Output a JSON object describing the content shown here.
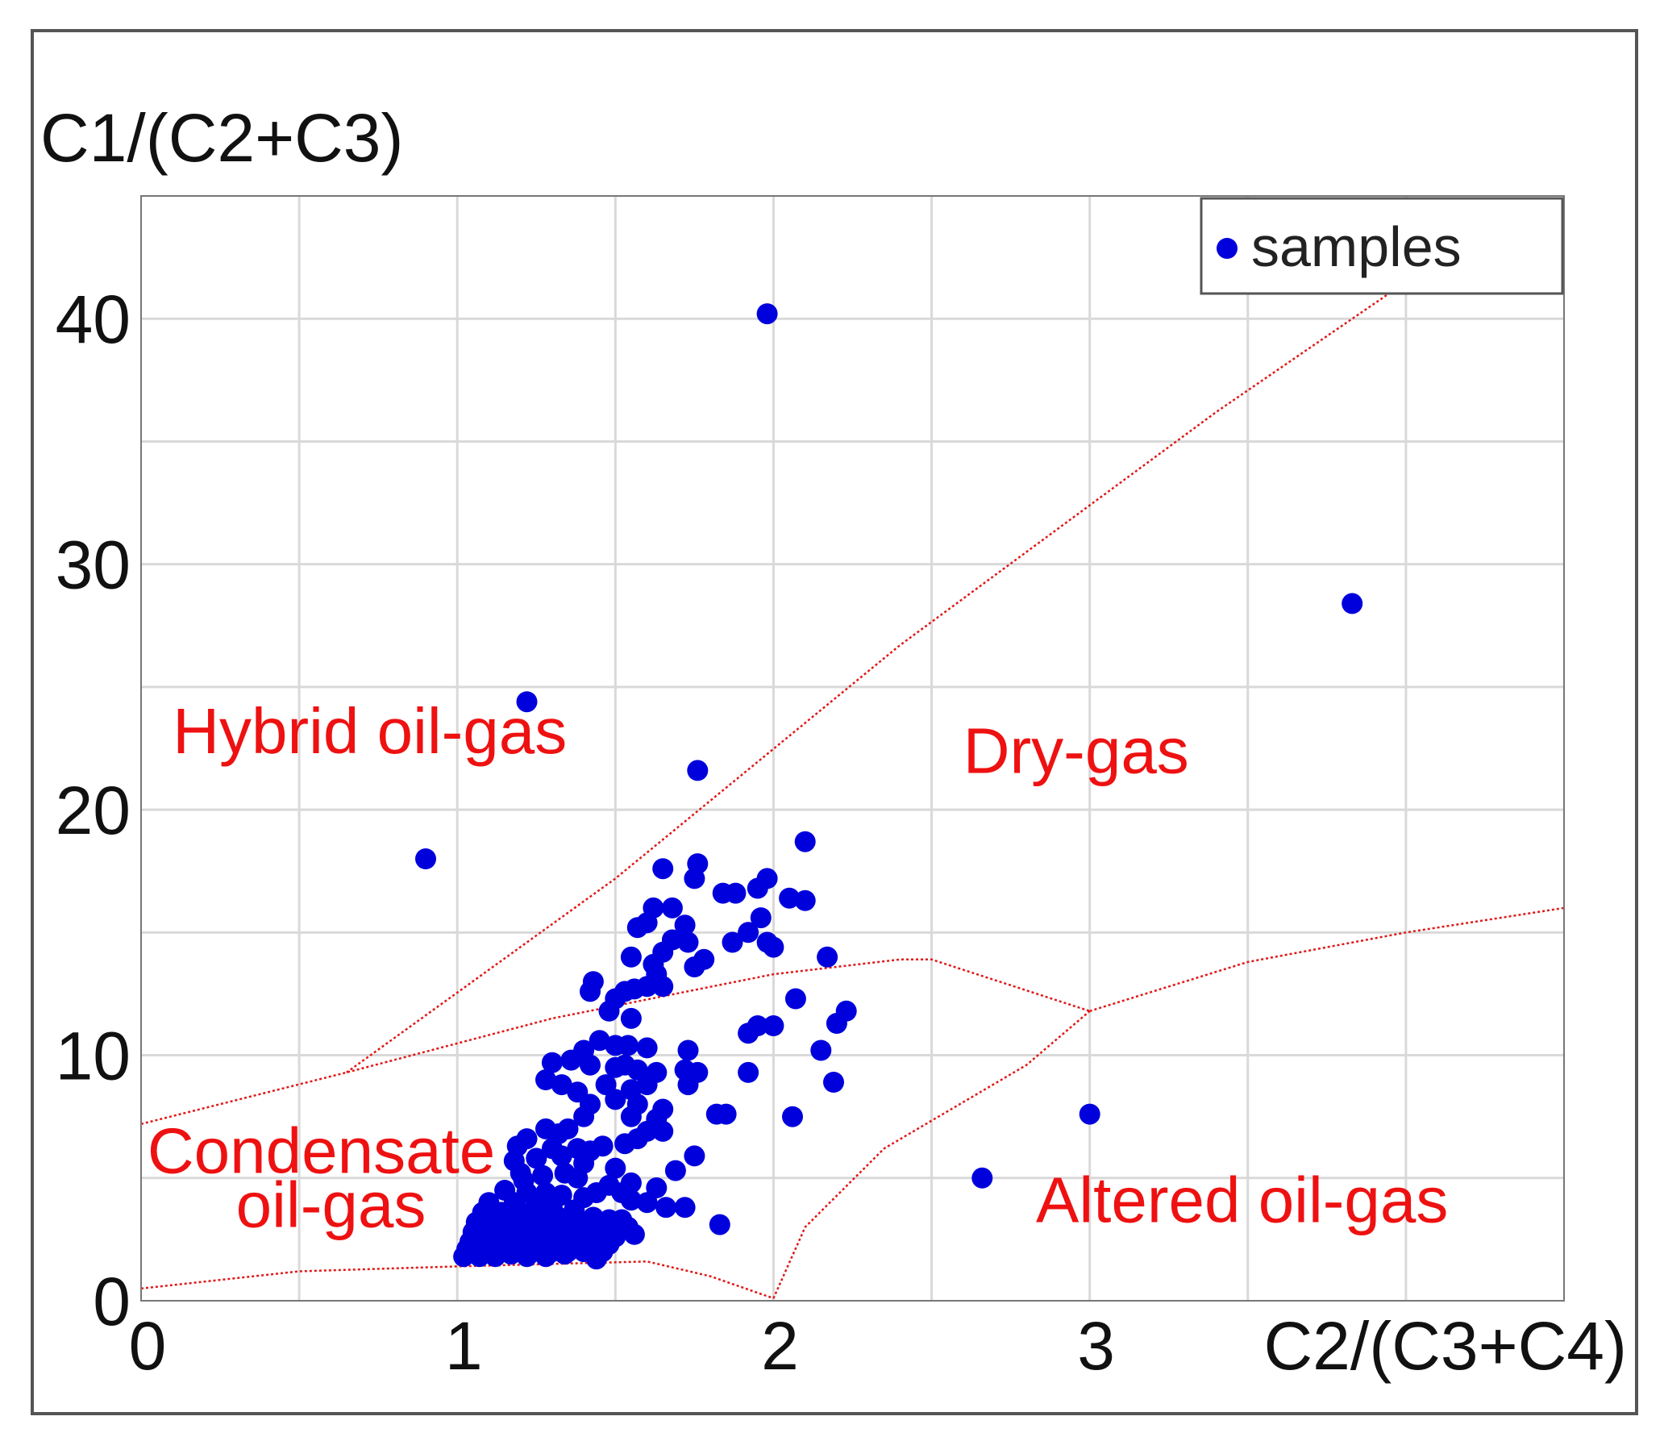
{
  "chart_data": {
    "type": "scatter",
    "ylabel": "C1/(C2+C3)",
    "xlabel": "C2/(C3+C4)",
    "xlim": [
      0,
      4.5
    ],
    "ylim": [
      0,
      45
    ],
    "x_grid_step": 0.5,
    "y_grid_step": 5,
    "x_ticks": [
      {
        "value": 0,
        "label": "0"
      },
      {
        "value": 1,
        "label": "1"
      },
      {
        "value": 2,
        "label": "2"
      },
      {
        "value": 3,
        "label": "3"
      }
    ],
    "y_ticks": [
      {
        "value": 0,
        "label": "0"
      },
      {
        "value": 10,
        "label": "10"
      },
      {
        "value": 20,
        "label": "20"
      },
      {
        "value": 30,
        "label": "30"
      },
      {
        "value": 40,
        "label": "40"
      }
    ],
    "grid": true,
    "legend": {
      "position": "top-right",
      "entries": [
        {
          "label": "samples",
          "color": "#0000dd"
        }
      ]
    },
    "colors": {
      "points": "#0000dd",
      "boundaries": "#e01818",
      "region_labels": "#ee1111",
      "grid": "#d9d9d9"
    },
    "region_labels": [
      {
        "text": "Hybrid oil-gas",
        "x": 0.1,
        "y": 22.3
      },
      {
        "text": "Dry-gas",
        "x": 2.6,
        "y": 21.5
      },
      {
        "text": "Condensate",
        "x": 0.02,
        "y": 5.2
      },
      {
        "text": "oil-gas",
        "x": 0.3,
        "y": 3.0
      },
      {
        "text": "Altered oil-gas",
        "x": 2.83,
        "y": 3.2
      }
    ],
    "boundaries": [
      {
        "name": "hybrid-drygas-boundary",
        "points": [
          [
            0.65,
            9.3
          ],
          [
            1.5,
            17.2
          ],
          [
            2.4,
            26.7
          ],
          [
            3.4,
            36.2
          ],
          [
            4.0,
            41.5
          ]
        ]
      },
      {
        "name": "condensate-upper-boundary",
        "points": [
          [
            0,
            7.2
          ],
          [
            0.65,
            9.3
          ],
          [
            1.3,
            11.5
          ],
          [
            2.0,
            13.3
          ],
          [
            2.4,
            13.9
          ],
          [
            2.5,
            13.9
          ],
          [
            3.0,
            11.8
          ]
        ]
      },
      {
        "name": "altered-upper-boundary",
        "points": [
          [
            3.0,
            11.8
          ],
          [
            3.5,
            13.8
          ],
          [
            4.0,
            15.0
          ],
          [
            4.5,
            16.0
          ]
        ]
      },
      {
        "name": "altered-left-boundary",
        "points": [
          [
            2.0,
            0.1
          ],
          [
            2.1,
            3.0
          ],
          [
            2.35,
            6.2
          ],
          [
            2.8,
            9.6
          ],
          [
            3.0,
            11.8
          ]
        ]
      },
      {
        "name": "bottom-boundary",
        "points": [
          [
            0,
            0.5
          ],
          [
            0.5,
            1.2
          ],
          [
            1.0,
            1.4
          ],
          [
            1.6,
            1.6
          ],
          [
            1.8,
            1.0
          ],
          [
            2.0,
            0.1
          ]
        ]
      }
    ],
    "series": [
      {
        "name": "samples",
        "points": [
          [
            1.98,
            40.2
          ],
          [
            3.83,
            28.4
          ],
          [
            1.22,
            24.4
          ],
          [
            1.76,
            21.6
          ],
          [
            0.9,
            18.0
          ],
          [
            2.1,
            18.7
          ],
          [
            1.76,
            17.8
          ],
          [
            1.65,
            17.6
          ],
          [
            1.75,
            17.2
          ],
          [
            1.84,
            16.6
          ],
          [
            1.88,
            16.6
          ],
          [
            1.98,
            17.2
          ],
          [
            1.95,
            16.8
          ],
          [
            2.05,
            16.4
          ],
          [
            2.1,
            16.3
          ],
          [
            1.62,
            16.0
          ],
          [
            1.68,
            16.0
          ],
          [
            1.6,
            15.4
          ],
          [
            1.57,
            15.2
          ],
          [
            1.72,
            15.3
          ],
          [
            1.96,
            15.6
          ],
          [
            1.92,
            15.0
          ],
          [
            1.87,
            14.6
          ],
          [
            1.68,
            14.7
          ],
          [
            1.73,
            14.6
          ],
          [
            1.98,
            14.6
          ],
          [
            2.0,
            14.4
          ],
          [
            1.65,
            14.2
          ],
          [
            1.78,
            13.9
          ],
          [
            1.75,
            13.6
          ],
          [
            1.55,
            14.0
          ],
          [
            1.62,
            13.7
          ],
          [
            2.17,
            14.0
          ],
          [
            1.63,
            13.3
          ],
          [
            1.43,
            13.0
          ],
          [
            1.42,
            12.6
          ],
          [
            1.53,
            12.6
          ],
          [
            1.5,
            12.3
          ],
          [
            1.56,
            12.7
          ],
          [
            1.6,
            12.8
          ],
          [
            1.65,
            12.8
          ],
          [
            2.07,
            12.3
          ],
          [
            2.23,
            11.8
          ],
          [
            2.2,
            11.3
          ],
          [
            1.95,
            11.2
          ],
          [
            1.92,
            10.9
          ],
          [
            2.0,
            11.2
          ],
          [
            1.48,
            11.8
          ],
          [
            1.55,
            11.5
          ],
          [
            1.45,
            10.6
          ],
          [
            1.4,
            10.2
          ],
          [
            1.5,
            10.4
          ],
          [
            1.54,
            10.4
          ],
          [
            1.6,
            10.3
          ],
          [
            1.73,
            10.2
          ],
          [
            2.15,
            10.2
          ],
          [
            1.3,
            9.7
          ],
          [
            1.36,
            9.8
          ],
          [
            1.42,
            9.6
          ],
          [
            1.5,
            9.5
          ],
          [
            1.53,
            9.6
          ],
          [
            1.57,
            9.4
          ],
          [
            1.63,
            9.3
          ],
          [
            1.72,
            9.4
          ],
          [
            1.76,
            9.3
          ],
          [
            1.92,
            9.3
          ],
          [
            1.28,
            9.0
          ],
          [
            1.33,
            8.8
          ],
          [
            1.38,
            8.5
          ],
          [
            1.47,
            8.8
          ],
          [
            1.55,
            8.6
          ],
          [
            1.6,
            8.8
          ],
          [
            1.73,
            8.8
          ],
          [
            2.19,
            8.9
          ],
          [
            1.42,
            8.0
          ],
          [
            1.5,
            8.2
          ],
          [
            1.57,
            8.0
          ],
          [
            1.65,
            7.8
          ],
          [
            1.82,
            7.6
          ],
          [
            1.85,
            7.6
          ],
          [
            1.4,
            7.5
          ],
          [
            1.55,
            7.5
          ],
          [
            1.63,
            7.4
          ],
          [
            1.35,
            7.0
          ],
          [
            1.28,
            7.0
          ],
          [
            1.32,
            6.8
          ],
          [
            1.22,
            6.6
          ],
          [
            1.57,
            6.6
          ],
          [
            1.6,
            6.9
          ],
          [
            1.65,
            6.9
          ],
          [
            2.06,
            7.5
          ],
          [
            3.0,
            7.6
          ],
          [
            1.19,
            6.3
          ],
          [
            1.3,
            6.2
          ],
          [
            1.38,
            6.2
          ],
          [
            1.42,
            6.1
          ],
          [
            1.46,
            6.3
          ],
          [
            1.53,
            6.4
          ],
          [
            1.75,
            5.9
          ],
          [
            1.25,
            5.8
          ],
          [
            1.18,
            5.7
          ],
          [
            1.33,
            5.9
          ],
          [
            1.4,
            5.6
          ],
          [
            1.5,
            5.4
          ],
          [
            1.69,
            5.3
          ],
          [
            1.2,
            5.2
          ],
          [
            1.27,
            5.1
          ],
          [
            1.34,
            5.2
          ],
          [
            1.38,
            5.0
          ],
          [
            1.48,
            4.7
          ],
          [
            1.55,
            4.8
          ],
          [
            1.63,
            4.6
          ],
          [
            1.21,
            4.9
          ],
          [
            2.66,
            5.0
          ],
          [
            1.15,
            4.5
          ],
          [
            1.22,
            4.4
          ],
          [
            1.28,
            4.4
          ],
          [
            1.33,
            4.3
          ],
          [
            1.4,
            4.2
          ],
          [
            1.44,
            4.4
          ],
          [
            1.52,
            4.4
          ],
          [
            1.55,
            4.1
          ],
          [
            1.6,
            4.0
          ],
          [
            1.66,
            3.8
          ],
          [
            1.72,
            3.8
          ],
          [
            1.1,
            4.0
          ],
          [
            1.18,
            4.0
          ],
          [
            1.25,
            3.9
          ],
          [
            1.3,
            3.8
          ],
          [
            1.37,
            3.7
          ],
          [
            1.08,
            3.6
          ],
          [
            1.14,
            3.6
          ],
          [
            1.2,
            3.6
          ],
          [
            1.26,
            3.5
          ],
          [
            1.32,
            3.4
          ],
          [
            1.38,
            3.3
          ],
          [
            1.43,
            3.4
          ],
          [
            1.48,
            3.3
          ],
          [
            1.52,
            3.3
          ],
          [
            1.06,
            3.2
          ],
          [
            1.12,
            3.2
          ],
          [
            1.18,
            3.1
          ],
          [
            1.23,
            3.1
          ],
          [
            1.29,
            3.0
          ],
          [
            1.35,
            3.0
          ],
          [
            1.4,
            3.0
          ],
          [
            1.46,
            3.0
          ],
          [
            1.54,
            3.0
          ],
          [
            1.83,
            3.1
          ],
          [
            1.05,
            2.8
          ],
          [
            1.1,
            2.8
          ],
          [
            1.15,
            2.7
          ],
          [
            1.21,
            2.7
          ],
          [
            1.27,
            2.7
          ],
          [
            1.33,
            2.6
          ],
          [
            1.38,
            2.6
          ],
          [
            1.44,
            2.6
          ],
          [
            1.5,
            2.6
          ],
          [
            1.56,
            2.7
          ],
          [
            1.04,
            2.4
          ],
          [
            1.09,
            2.4
          ],
          [
            1.14,
            2.4
          ],
          [
            1.19,
            2.3
          ],
          [
            1.25,
            2.3
          ],
          [
            1.31,
            2.3
          ],
          [
            1.36,
            2.3
          ],
          [
            1.42,
            2.3
          ],
          [
            1.48,
            2.3
          ],
          [
            1.03,
            2.1
          ],
          [
            1.08,
            2.1
          ],
          [
            1.13,
            2.0
          ],
          [
            1.18,
            2.0
          ],
          [
            1.24,
            2.0
          ],
          [
            1.3,
            2.0
          ],
          [
            1.35,
            2.0
          ],
          [
            1.4,
            2.0
          ],
          [
            1.46,
            2.0
          ],
          [
            1.02,
            1.8
          ],
          [
            1.07,
            1.8
          ],
          [
            1.12,
            1.8
          ],
          [
            1.17,
            1.9
          ],
          [
            1.22,
            1.8
          ],
          [
            1.28,
            1.8
          ],
          [
            1.34,
            1.9
          ],
          [
            1.44,
            1.7
          ]
        ]
      }
    ]
  }
}
